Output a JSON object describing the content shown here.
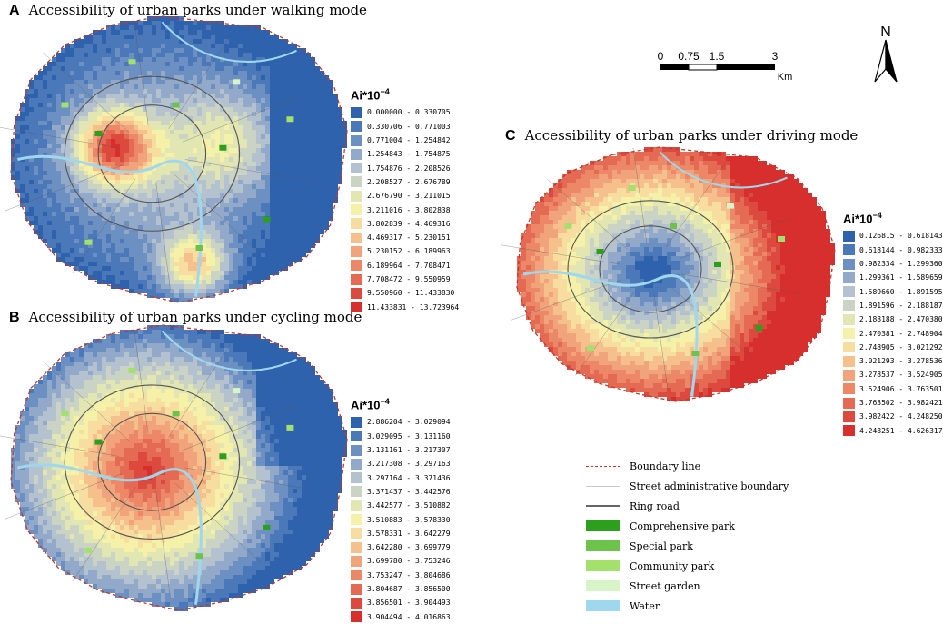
{
  "panels": {
    "a": {
      "letter": "A",
      "title": "Accessibility of urban parks under walking mode"
    },
    "b": {
      "letter": "B",
      "title": "Accessibility of urban parks under cycling mode"
    },
    "c": {
      "letter": "C",
      "title": "Accessibility of urban parks under driving mode"
    }
  },
  "legend_header": {
    "base": "Ai*10",
    "exp": "−4"
  },
  "colors": [
    "#2f62ad",
    "#4a78b8",
    "#6d90c2",
    "#93a9c9",
    "#b4c2cf",
    "#cbd3c4",
    "#e2e6b3",
    "#f5f1a8",
    "#f7dea0",
    "#f5c08c",
    "#f1a47b",
    "#ec8868",
    "#e56a54",
    "#dc4a3f",
    "#d62f2e"
  ],
  "legend_a": [
    "0.000000 - 0.330705",
    "0.330706 - 0.771003",
    "0.771004 - 1.254842",
    "1.254843 - 1.754875",
    "1.754876 - 2.208526",
    "2.208527 - 2.676789",
    "2.676790 - 3.211015",
    "3.211016 - 3.802838",
    "3.802839 - 4.469316",
    "4.469317 - 5.230151",
    "5.230152 - 6.189963",
    "6.189964 - 7.708471",
    "7.708472 - 9.550959",
    "9.550960 - 11.433830",
    "11.433831 - 13.723964"
  ],
  "legend_b": [
    "2.886204 - 3.029094",
    "3.029095 - 3.131160",
    "3.131161 - 3.217307",
    "3.217308 - 3.297163",
    "3.297164 - 3.371436",
    "3.371437 - 3.442576",
    "3.442577 - 3.510882",
    "3.510883 - 3.578330",
    "3.578331 - 3.642279",
    "3.642280 - 3.699779",
    "3.699780 - 3.753246",
    "3.753247 - 3.804686",
    "3.804687 - 3.856500",
    "3.856501 - 3.904493",
    "3.904494 - 4.016863"
  ],
  "legend_c": [
    "0.126815 - 0.618143",
    "0.618144 - 0.982333",
    "0.982334 - 1.299360",
    "1.299361 - 1.589659",
    "1.589660 - 1.891595",
    "1.891596 - 2.188187",
    "2.188188 - 2.470380",
    "2.470381 - 2.748904",
    "2.748905 - 3.021292",
    "3.021293 - 3.278536",
    "3.278537 - 3.524905",
    "3.524906 - 3.763501",
    "3.763502 - 3.982421",
    "3.982422 - 4.248250",
    "4.248251 - 4.626317"
  ],
  "scale": {
    "ticks": [
      "0",
      "0.75",
      "1.5",
      "3"
    ],
    "unit": "Km"
  },
  "north": {
    "label": "N"
  },
  "key": [
    {
      "label": "Boundary line",
      "kind": "dash",
      "color": "#c0392b"
    },
    {
      "label": "Street administrative boundary",
      "kind": "line",
      "color": "#c8c8c8"
    },
    {
      "label": "Ring road",
      "kind": "line",
      "color": "#666666"
    },
    {
      "label": "Comprehensive park",
      "kind": "fill",
      "color": "#2ca01c"
    },
    {
      "label": "Special park",
      "kind": "fill",
      "color": "#6cc24a"
    },
    {
      "label": "Community park",
      "kind": "fill",
      "color": "#a3e06c"
    },
    {
      "label": "Street garden",
      "kind": "fill",
      "color": "#d8f5c8"
    },
    {
      "label": "Water",
      "kind": "fill",
      "color": "#9fd8ee"
    }
  ]
}
